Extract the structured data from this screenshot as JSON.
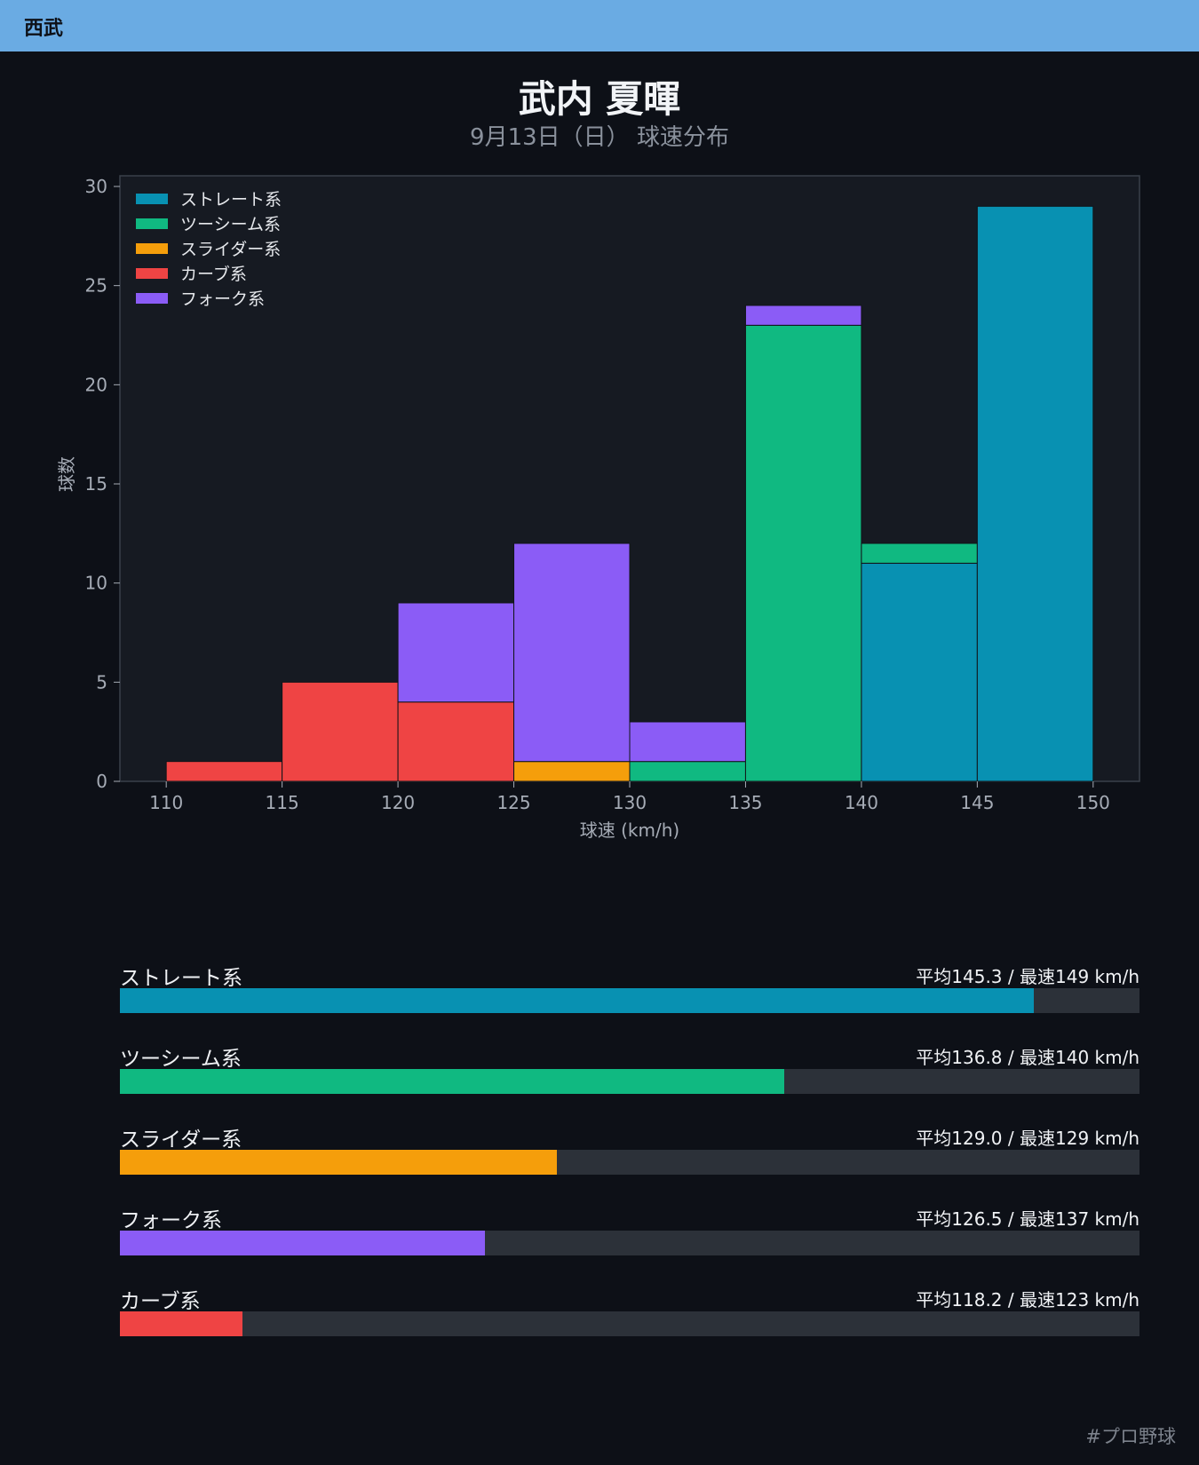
{
  "header": {
    "team": "西武"
  },
  "title": "武内 夏暉",
  "subtitle": "9月13日（日） 球速分布",
  "chart_data": {
    "type": "bar",
    "stacked": true,
    "xlabel": "球速 (km/h)",
    "ylabel": "球数",
    "xlim": [
      108,
      152
    ],
    "ylim": [
      0,
      30
    ],
    "xticks": [
      110,
      115,
      120,
      125,
      130,
      135,
      140,
      145,
      150
    ],
    "yticks": [
      0,
      5,
      10,
      15,
      20,
      25,
      30
    ],
    "bin_edges": [
      110,
      115,
      120,
      125,
      130,
      135,
      140,
      145,
      150
    ],
    "legend_position": "top-left",
    "series": [
      {
        "name": "ストレート系",
        "color": "#0891b2",
        "values": [
          0,
          0,
          0,
          0,
          0,
          0,
          11,
          29
        ]
      },
      {
        "name": "ツーシーム系",
        "color": "#10b981",
        "values": [
          0,
          0,
          0,
          0,
          1,
          23,
          1,
          0
        ]
      },
      {
        "name": "スライダー系",
        "color": "#f59e0b",
        "values": [
          0,
          0,
          0,
          1,
          0,
          0,
          0,
          0
        ]
      },
      {
        "name": "カーブ系",
        "color": "#ef4444",
        "values": [
          1,
          5,
          4,
          0,
          0,
          0,
          0,
          0
        ]
      },
      {
        "name": "フォーク系",
        "color": "#8b5cf6",
        "values": [
          0,
          0,
          5,
          11,
          2,
          1,
          0,
          0
        ]
      }
    ]
  },
  "stats": [
    {
      "name": "ストレート系",
      "color": "#0891b2",
      "value_text": "平均145.3 / 最速149 km/h",
      "fill_fraction": 0.896
    },
    {
      "name": "ツーシーム系",
      "color": "#10b981",
      "value_text": "平均136.8 / 最速140 km/h",
      "fill_fraction": 0.652
    },
    {
      "name": "スライダー系",
      "color": "#f59e0b",
      "value_text": "平均129.0 / 最速129 km/h",
      "fill_fraction": 0.429
    },
    {
      "name": "フォーク系",
      "color": "#8b5cf6",
      "value_text": "平均126.5 / 最速137 km/h",
      "fill_fraction": 0.358
    },
    {
      "name": "カーブ系",
      "color": "#ef4444",
      "value_text": "平均118.2 / 最速123 km/h",
      "fill_fraction": 0.12
    }
  ],
  "footer": {
    "hashtag": "#プロ野球"
  }
}
